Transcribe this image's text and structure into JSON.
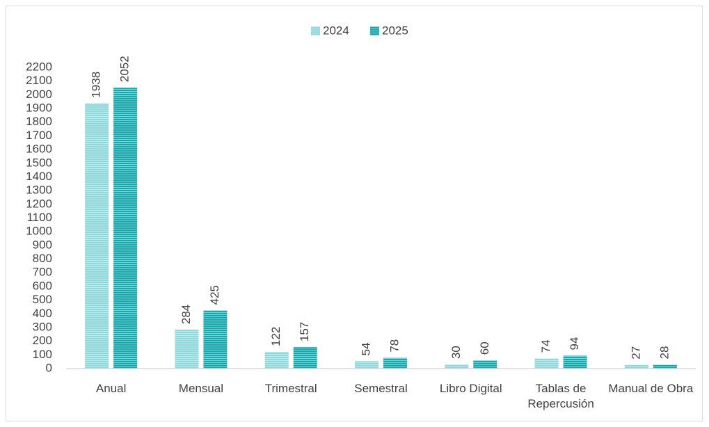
{
  "chart_data": {
    "type": "bar",
    "categories": [
      "Anual",
      "Mensual",
      "Trimestral",
      "Semestral",
      "Libro Digital",
      "Tablas de Repercusión",
      "Manual de Obra"
    ],
    "series": [
      {
        "name": "2024",
        "color": "#8fd9dc",
        "values": [
          1938,
          284,
          122,
          54,
          30,
          74,
          27
        ]
      },
      {
        "name": "2025",
        "color": "#16a9ae",
        "values": [
          2052,
          425,
          157,
          78,
          60,
          94,
          28
        ]
      }
    ],
    "ylim": [
      0,
      2200
    ],
    "yticks": [
      0,
      100,
      200,
      300,
      400,
      500,
      600,
      700,
      800,
      900,
      1000,
      1100,
      1200,
      1300,
      1400,
      1500,
      1600,
      1700,
      1800,
      1900,
      2000,
      2100,
      2200
    ],
    "grid": false,
    "legend": "top"
  }
}
